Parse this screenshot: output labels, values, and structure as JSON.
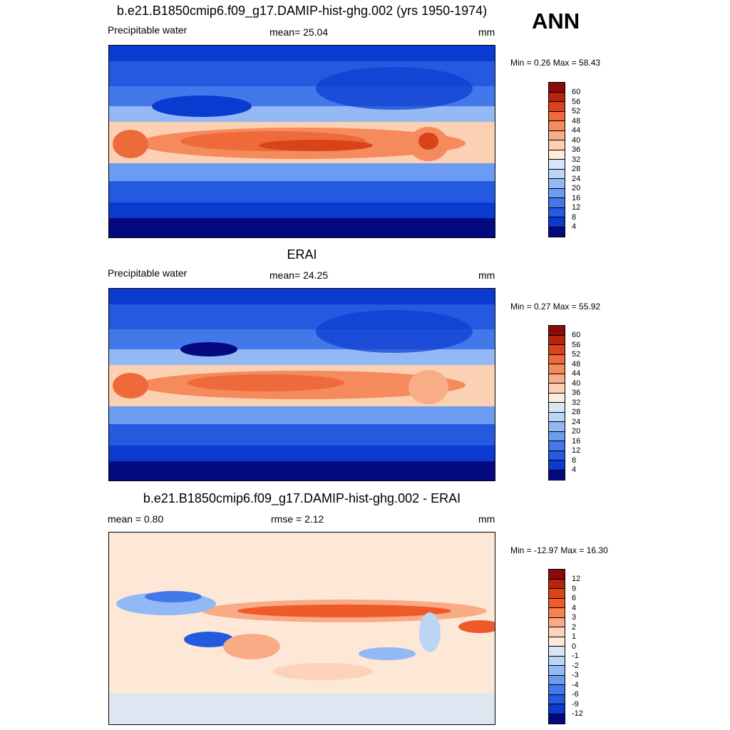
{
  "page": {
    "season": "ANN"
  },
  "colors": {
    "abs_palette": [
      "#8b0a0a",
      "#b5250d",
      "#d8431a",
      "#ee6a3a",
      "#f58a5c",
      "#f9ad86",
      "#fcd0b2",
      "#fdebdc",
      "#d6e6f7",
      "#bcd5f5",
      "#93b9f5",
      "#6b9cf2",
      "#4478ea",
      "#235ae0",
      "#0b3ad0",
      "#0a1fa8",
      "#05097f"
    ],
    "diff_palette": [
      "#8b0a0a",
      "#b5250d",
      "#d8431a",
      "#ee5a2a",
      "#f5824f",
      "#f9ab86",
      "#fcd2b8",
      "#fde8d8",
      "#d6e6f7",
      "#bcd5f5",
      "#93b9f5",
      "#6b9cf2",
      "#4478ea",
      "#235ae0",
      "#0b3ad0",
      "#0a1fa8",
      "#05097f"
    ]
  },
  "panels": [
    {
      "title": "b.e21.B1850cmip6.f09_g17.DAMIP-hist-ghg.002 (yrs 1950-1974)",
      "left": "Precipitable water",
      "center": "mean=  25.04",
      "right": "mm",
      "minmax": "Min =   0.26 Max =  58.43",
      "colorbar_labels": [
        "60",
        "56",
        "52",
        "48",
        "44",
        "40",
        "36",
        "32",
        "28",
        "24",
        "20",
        "16",
        "12",
        "8",
        "4"
      ],
      "field_mean": 25.04,
      "field_min": 0.26,
      "field_max": 58.43
    },
    {
      "title": "ERAI",
      "left": "Precipitable water",
      "center": "mean=  24.25",
      "right": "mm",
      "minmax": "Min =   0.27 Max =  55.92",
      "colorbar_labels": [
        "60",
        "56",
        "52",
        "48",
        "44",
        "40",
        "36",
        "32",
        "28",
        "24",
        "20",
        "16",
        "12",
        "8",
        "4"
      ],
      "field_mean": 24.25,
      "field_min": 0.27,
      "field_max": 55.92
    },
    {
      "title": "b.e21.B1850cmip6.f09_g17.DAMIP-hist-ghg.002 - ERAI",
      "left": "mean =   0.80",
      "center": "rmse =   2.12",
      "right": "mm",
      "minmax": "Min = -12.97 Max =  16.30",
      "colorbar_labels": [
        "12",
        "9",
        "6",
        "4",
        "3",
        "2",
        "1",
        "0",
        "-1",
        "-2",
        "-3",
        "-4",
        "-6",
        "-9",
        "-12"
      ],
      "field_mean": 0.8,
      "field_rmse": 2.12,
      "field_min": -12.97,
      "field_max": 16.3
    }
  ]
}
